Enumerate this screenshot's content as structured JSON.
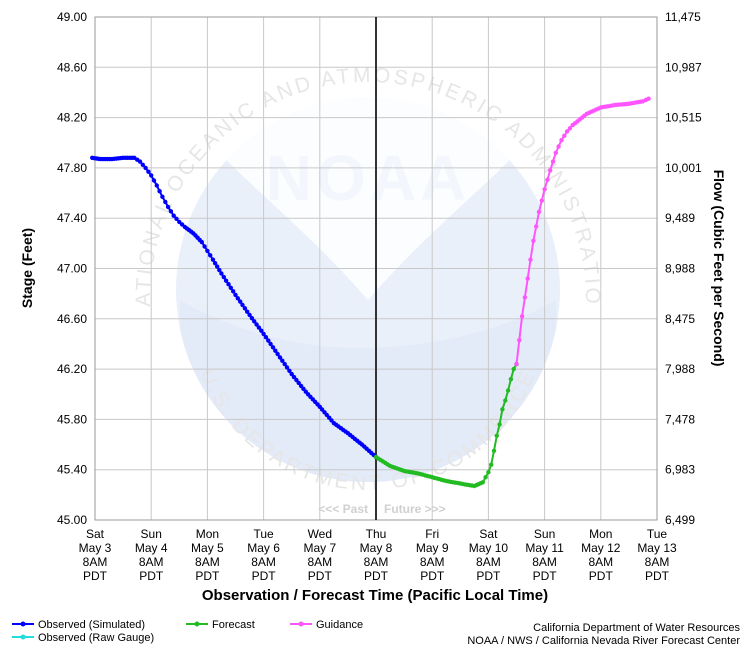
{
  "chart_data": {
    "type": "line",
    "title": "",
    "xlabel": "Observation / Forecast Time (Pacific Local Time)",
    "ylabel_left": "Stage (Feet)",
    "ylabel_right": "Flow (Cubic Feet per Second)",
    "x_range_days": [
      "Sat May 3 8AM PDT",
      "Tue May 13 8AM PDT"
    ],
    "ylim": [
      45.0,
      49.0
    ],
    "y_ticks": [
      "45.00",
      "45.40",
      "45.80",
      "46.20",
      "46.60",
      "47.00",
      "47.40",
      "47.80",
      "48.20",
      "48.60",
      "49.00"
    ],
    "y_right_ticks": [
      "6,499",
      "6,983",
      "7,478",
      "7,988",
      "8,475",
      "8,988",
      "9,489",
      "10,001",
      "10,515",
      "10,987",
      "11,475"
    ],
    "x_ticks": [
      {
        "day": "Sat",
        "date": "May 3",
        "time": "8AM",
        "tz": "PDT"
      },
      {
        "day": "Sun",
        "date": "May 4",
        "time": "8AM",
        "tz": "PDT"
      },
      {
        "day": "Mon",
        "date": "May 5",
        "time": "8AM",
        "tz": "PDT"
      },
      {
        "day": "Tue",
        "date": "May 6",
        "time": "8AM",
        "tz": "PDT"
      },
      {
        "day": "Wed",
        "date": "May 7",
        "time": "8AM",
        "tz": "PDT"
      },
      {
        "day": "Thu",
        "date": "May 8",
        "time": "8AM",
        "tz": "PDT"
      },
      {
        "day": "Fri",
        "date": "May 9",
        "time": "8AM",
        "tz": "PDT"
      },
      {
        "day": "Sat",
        "date": "May 10",
        "time": "8AM",
        "tz": "PDT"
      },
      {
        "day": "Sun",
        "date": "May 11",
        "time": "8AM",
        "tz": "PDT"
      },
      {
        "day": "Mon",
        "date": "May 12",
        "time": "8AM",
        "tz": "PDT"
      },
      {
        "day": "Tue",
        "date": "May 13",
        "time": "8AM",
        "tz": "PDT"
      }
    ],
    "now_marker_day": 5.0,
    "past_label": "<<< Past",
    "future_label": "Future >>>",
    "grid": true,
    "series": [
      {
        "name": "Observed (Simulated)",
        "color": "#0000ff",
        "x_days": [
          -0.05,
          0.1,
          0.3,
          0.5,
          0.7,
          0.8,
          0.9,
          1.0,
          1.1,
          1.2,
          1.3,
          1.4,
          1.5,
          1.6,
          1.75,
          1.9,
          2.0,
          2.1,
          2.25,
          2.5,
          2.75,
          3.0,
          3.25,
          3.5,
          3.75,
          4.0,
          4.25,
          4.5,
          4.75,
          5.0
        ],
        "values": [
          47.88,
          47.87,
          47.87,
          47.88,
          47.88,
          47.85,
          47.8,
          47.74,
          47.66,
          47.57,
          47.49,
          47.42,
          47.37,
          47.33,
          47.28,
          47.21,
          47.14,
          47.07,
          46.96,
          46.79,
          46.63,
          46.48,
          46.32,
          46.16,
          46.02,
          45.9,
          45.77,
          45.69,
          45.6,
          45.5
        ]
      },
      {
        "name": "Observed (Raw Gauge)",
        "color": "#22dddd",
        "x_days": [],
        "values": []
      },
      {
        "name": "Forecast",
        "color": "#22bb22",
        "x_days": [
          5.0,
          5.25,
          5.5,
          5.75,
          6.0,
          6.25,
          6.5,
          6.75,
          6.9,
          7.0,
          7.05,
          7.1,
          7.15,
          7.2,
          7.25,
          7.3,
          7.35,
          7.4,
          7.45,
          7.5
        ],
        "values": [
          45.5,
          45.43,
          45.39,
          45.37,
          45.34,
          45.31,
          45.29,
          45.27,
          45.3,
          45.38,
          45.44,
          45.55,
          45.67,
          45.76,
          45.88,
          45.95,
          46.03,
          46.12,
          46.2,
          46.24
        ]
      },
      {
        "name": "Guidance",
        "color": "#ff55ff",
        "x_days": [
          7.5,
          7.6,
          7.7,
          7.8,
          7.9,
          8.0,
          8.1,
          8.2,
          8.3,
          8.4,
          8.5,
          8.75,
          9.0,
          9.25,
          9.5,
          9.75,
          9.85
        ],
        "values": [
          46.24,
          46.62,
          46.92,
          47.22,
          47.45,
          47.63,
          47.78,
          47.92,
          48.02,
          48.09,
          48.14,
          48.23,
          48.28,
          48.3,
          48.31,
          48.33,
          48.35
        ]
      }
    ],
    "legend_position": "bottom-left"
  },
  "watermark": {
    "logo_text": "NOAA",
    "ring_top": "NATIONAL OCEANIC AND ATMOSPHERIC ADMINISTRATION",
    "ring_bottom": "U.S. DEPARTMENT OF COMMERCE"
  },
  "credits": {
    "line1": "California Department of Water Resources",
    "line2": "NOAA / NWS / California Nevada River Forecast Center"
  }
}
